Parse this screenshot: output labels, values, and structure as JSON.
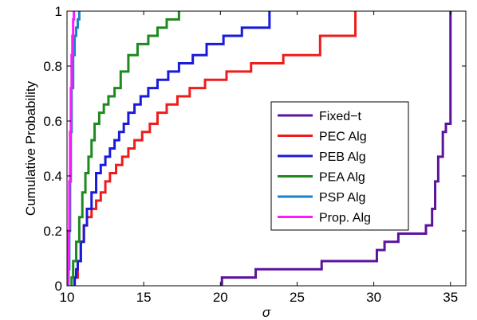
{
  "chart_data": {
    "type": "line",
    "step": true,
    "xlabel": "σ",
    "ylabel": "Cumulative Probability",
    "xlim": [
      10,
      36
    ],
    "ylim": [
      0,
      1
    ],
    "xticks": [
      10,
      15,
      20,
      25,
      30,
      35
    ],
    "yticks": [
      0,
      0.2,
      0.4,
      0.6,
      0.8,
      1
    ],
    "xtick_labels": [
      "10",
      "15",
      "20",
      "25",
      "30",
      "35"
    ],
    "ytick_labels": [
      "0",
      "0.2",
      "0.4",
      "0.6",
      "0.8",
      "1"
    ],
    "grid": false,
    "legend_position": "right",
    "series": [
      {
        "name": "Fixed−t",
        "color": "#5b139e",
        "x": [
          20.1,
          22.3,
          26.6,
          30.2,
          30.7,
          31.6,
          33.4,
          33.8,
          34.0,
          34.2,
          34.5,
          34.7,
          35.0
        ],
        "y": [
          0.03,
          0.06,
          0.09,
          0.13,
          0.16,
          0.19,
          0.22,
          0.28,
          0.38,
          0.47,
          0.56,
          0.59,
          1.0
        ]
      },
      {
        "name": "PEC Alg",
        "color": "#ee1c1c",
        "x": [
          10.5,
          10.7,
          10.9,
          11.1,
          11.3,
          11.6,
          11.9,
          12.2,
          12.5,
          12.8,
          13.2,
          13.6,
          14.0,
          14.4,
          14.9,
          15.4,
          15.9,
          16.5,
          17.2,
          18.0,
          19.0,
          20.4,
          22.0,
          24.1,
          26.5,
          28.8
        ],
        "y": [
          0.03,
          0.09,
          0.16,
          0.22,
          0.25,
          0.28,
          0.31,
          0.34,
          0.38,
          0.41,
          0.44,
          0.47,
          0.5,
          0.53,
          0.56,
          0.59,
          0.63,
          0.66,
          0.69,
          0.72,
          0.75,
          0.78,
          0.81,
          0.84,
          0.91,
          1.0
        ]
      },
      {
        "name": "PEB Alg",
        "color": "#1a1adb",
        "x": [
          10.5,
          10.6,
          10.7,
          10.9,
          11.1,
          11.3,
          11.6,
          11.9,
          12.2,
          12.5,
          12.8,
          13.1,
          13.4,
          13.7,
          14.0,
          14.4,
          14.8,
          15.3,
          15.9,
          16.6,
          17.3,
          18.2,
          19.1,
          20.2,
          21.4,
          23.2
        ],
        "y": [
          0.03,
          0.06,
          0.09,
          0.16,
          0.22,
          0.28,
          0.34,
          0.41,
          0.44,
          0.47,
          0.5,
          0.53,
          0.56,
          0.59,
          0.63,
          0.66,
          0.69,
          0.72,
          0.75,
          0.78,
          0.81,
          0.84,
          0.88,
          0.91,
          0.94,
          1.0
        ]
      },
      {
        "name": "PEA Alg",
        "color": "#1e8a1e",
        "x": [
          10.3,
          10.4,
          10.6,
          10.8,
          11.0,
          11.2,
          11.4,
          11.6,
          11.8,
          12.1,
          12.4,
          12.7,
          13.1,
          13.5,
          14.0,
          14.6,
          15.3,
          15.9,
          16.5,
          17.3
        ],
        "y": [
          0.03,
          0.09,
          0.16,
          0.25,
          0.34,
          0.41,
          0.47,
          0.53,
          0.59,
          0.63,
          0.66,
          0.69,
          0.72,
          0.78,
          0.84,
          0.88,
          0.91,
          0.94,
          0.97,
          1.0
        ]
      },
      {
        "name": "PSP  Alg",
        "color": "#1a85c2",
        "x": [
          10.1,
          10.15,
          10.2,
          10.25,
          10.3,
          10.4,
          10.5,
          10.6,
          10.7,
          10.8
        ],
        "y": [
          0.06,
          0.2,
          0.38,
          0.56,
          0.72,
          0.84,
          0.91,
          0.94,
          0.97,
          1.0
        ]
      },
      {
        "name": "Prop. Alg",
        "color": "#ff19ff",
        "x": [
          10.05,
          10.1,
          10.15,
          10.2,
          10.25,
          10.3,
          10.35,
          10.4,
          10.45
        ],
        "y": [
          0.06,
          0.2,
          0.38,
          0.56,
          0.72,
          0.84,
          0.91,
          0.97,
          1.0
        ]
      }
    ]
  }
}
